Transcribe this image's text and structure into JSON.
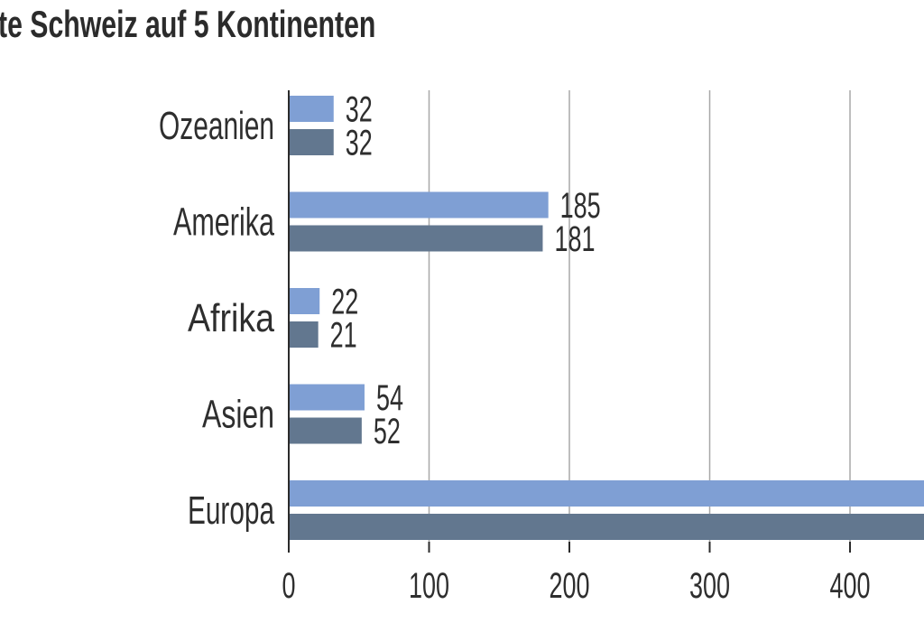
{
  "chart_data": {
    "type": "bar",
    "orientation": "horizontal",
    "title": "te Schweiz auf 5 Kontinenten",
    "xlabel": "",
    "ylabel": "",
    "categories": [
      "Ozeanien",
      "Amerika",
      "Afrika",
      "Asien",
      "Europa"
    ],
    "series": [
      {
        "values": [
          32,
          185,
          22,
          54,
          500
        ],
        "value_labels": [
          "32",
          "185",
          "22",
          "54",
          ""
        ]
      },
      {
        "values": [
          32,
          181,
          21,
          52,
          500
        ],
        "value_labels": [
          "32",
          "181",
          "21",
          "52",
          ""
        ]
      }
    ],
    "xlim": [
      0,
      450
    ],
    "xticks": [
      0,
      100,
      200,
      300,
      400
    ],
    "grid": true,
    "legend": "none",
    "colors": {
      "series1": "#7f9fd4",
      "series2": "#62778f",
      "grid": "#a8a8a8",
      "axis": "#2b2b2b",
      "text": "#2e2e2e"
    }
  }
}
